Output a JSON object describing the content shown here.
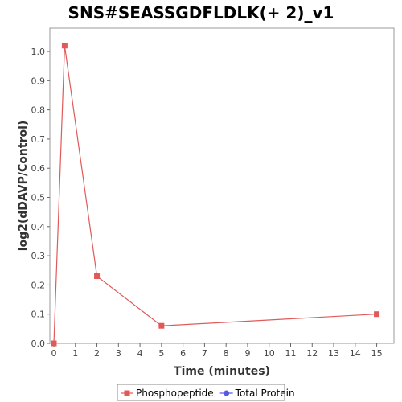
{
  "chart_data": {
    "type": "line",
    "title": "SNS#SEASSGDFLDLK(+ 2)_v1",
    "xlabel": "Time (minutes)",
    "ylabel": "log2(dDAVP/Control)",
    "xlim": [
      0,
      15.8
    ],
    "ylim": [
      0,
      1.08
    ],
    "x_ticks": [
      0,
      1,
      2,
      3,
      4,
      5,
      6,
      7,
      8,
      9,
      10,
      11,
      12,
      13,
      14,
      15
    ],
    "y_ticks": [
      0.0,
      0.1,
      0.2,
      0.3,
      0.4,
      0.5,
      0.6,
      0.7,
      0.8,
      0.9,
      1.0
    ],
    "grid": false,
    "legend_position": "bottom",
    "series": [
      {
        "name": "Phosphopeptide",
        "color": "#e05a5a",
        "marker": "square",
        "points": [
          {
            "x": 0,
            "y": 0.0
          },
          {
            "x": 0.5,
            "y": 1.02
          },
          {
            "x": 2,
            "y": 0.23
          },
          {
            "x": 5,
            "y": 0.06
          },
          {
            "x": 15,
            "y": 0.1
          }
        ]
      },
      {
        "name": "Total Protein",
        "color": "#5a5ae0",
        "marker": "circle",
        "points": []
      }
    ]
  }
}
